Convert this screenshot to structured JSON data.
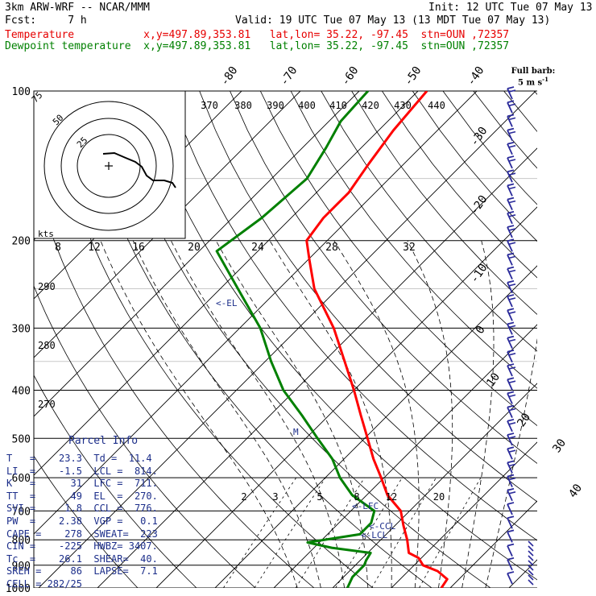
{
  "header": {
    "left1": "3km ARW-WRF -- NCAR/MMM",
    "right1": "Init: 12 UTC Tue 07 May 13",
    "left2": "Fcst:     7 h",
    "right2": "Valid: 19 UTC Tue 07 May 13 (13 MDT Tue 07 May 13)",
    "temp_line": "Temperature           x,y=497.89,353.81   lat,lon= 35.22, -97.45  stn=OUN ,72357",
    "dew_line": "Dewpoint temperature  x,y=497.89,353.81   lat,lon= 35.22, -97.45  stn=OUN ,72357"
  },
  "colors": {
    "temperature": "#ff0000",
    "dewpoint": "#008000",
    "parcel_text": "#1c2e8a",
    "barbs": "#2a2a9a"
  },
  "barb_caption": [
    "Full barb:",
    "5 m s",
    "-1"
  ],
  "parcel_info": {
    "title": "Parcel Info",
    "rows": [
      "T   =    23.3  Td =  11.4",
      "LI  =    -1.5  LCL =  814.",
      "K   =      31  LFC =  711.",
      "TT  =      49  EL  =  270.",
      "SVI =     1.8  CCL =  776.",
      "PW  =    2.38  VGP =   0.1",
      "CAPE =    278  SWEAT=  223",
      "CIN =    -225  HWBZ= 3407.",
      "Tc  =    26.1  SHEAR=  40.",
      "SREH =     86  LAPSE=  7.1",
      "CELL = 282/25"
    ]
  },
  "level_labels": [
    "<-EL",
    "<-LFC",
    "<-CCL",
    "<-LCL",
    "M"
  ],
  "hodograph": {
    "units": "kts",
    "ring_labels": [
      "25",
      "50",
      "75"
    ]
  },
  "chart_data": {
    "type": "line",
    "skew_t": true,
    "pressure_levels": [
      100,
      200,
      300,
      400,
      500,
      600,
      700,
      800,
      900,
      1000
    ],
    "isotherm_labels": [
      "-80",
      "-70",
      "-60",
      "-50",
      "-40",
      "-30",
      "-20",
      "-10",
      "0",
      "10",
      "20",
      "30",
      "40"
    ],
    "theta_labels": [
      "370",
      "380",
      "390",
      "400",
      "410",
      "420",
      "430",
      "440"
    ],
    "mixing_ratio_top_labels": [
      "8",
      "12",
      "16",
      "20",
      "24",
      "28",
      "32"
    ],
    "mixing_ratio_bottom_labels": [
      "2",
      "3",
      "5",
      "8",
      "12",
      "20"
    ],
    "theta_side_labels": [
      "290",
      "280",
      "270"
    ],
    "series": [
      {
        "name": "Temperature",
        "color": "#ff0000",
        "points": [
          [
            1000,
            28.5
          ],
          [
            960,
            28.0
          ],
          [
            925,
            25.0
          ],
          [
            900,
            21.5
          ],
          [
            870,
            19.5
          ],
          [
            850,
            17.0
          ],
          [
            800,
            14.5
          ],
          [
            750,
            11.5
          ],
          [
            700,
            8.5
          ],
          [
            650,
            3.5
          ],
          [
            600,
            -0.5
          ],
          [
            550,
            -5.0
          ],
          [
            500,
            -9.5
          ],
          [
            450,
            -14.5
          ],
          [
            400,
            -20.0
          ],
          [
            350,
            -26.5
          ],
          [
            300,
            -34.0
          ],
          [
            250,
            -44.0
          ],
          [
            220,
            -49.5
          ],
          [
            200,
            -53.5
          ],
          [
            180,
            -54.5
          ],
          [
            160,
            -54.5
          ],
          [
            140,
            -56.0
          ],
          [
            120,
            -57.5
          ],
          [
            100,
            -58.5
          ]
        ]
      },
      {
        "name": "Dewpoint temperature",
        "color": "#008000",
        "points": [
          [
            1000,
            12.5
          ],
          [
            950,
            11.5
          ],
          [
            900,
            11.5
          ],
          [
            880,
            11.0
          ],
          [
            850,
            10.5
          ],
          [
            830,
            3.0
          ],
          [
            810,
            -2.0
          ],
          [
            780,
            5.5
          ],
          [
            740,
            5.5
          ],
          [
            700,
            4.0
          ],
          [
            650,
            -2.5
          ],
          [
            600,
            -7.5
          ],
          [
            550,
            -12.0
          ],
          [
            500,
            -18.0
          ],
          [
            450,
            -24.5
          ],
          [
            400,
            -32.0
          ],
          [
            350,
            -39.0
          ],
          [
            300,
            -46.5
          ],
          [
            250,
            -57.0
          ],
          [
            210,
            -67.0
          ],
          [
            180,
            -65.0
          ],
          [
            150,
            -64.0
          ],
          [
            130,
            -66.0
          ],
          [
            115,
            -68.0
          ],
          [
            100,
            -68.5
          ]
        ]
      }
    ],
    "y_axis": "pressure (hPa)",
    "y_scale": "log",
    "ylim": [
      1000,
      100
    ]
  }
}
